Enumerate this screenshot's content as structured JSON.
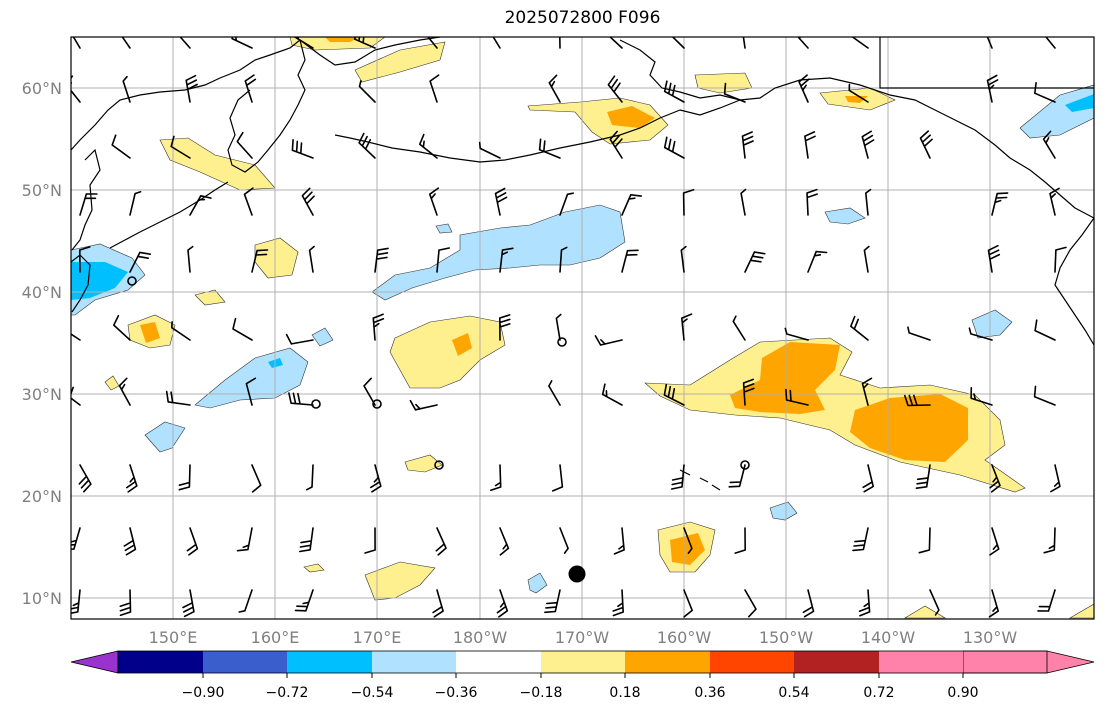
{
  "title": "2025072800 F096",
  "map": {
    "lat_labels": [
      "60°N",
      "50°N",
      "40°N",
      "30°N",
      "20°N",
      "10°N"
    ],
    "lon_labels": [
      "150°E",
      "160°E",
      "170°E",
      "180°W",
      "170°W",
      "160°W",
      "150°W",
      "140°W",
      "130°W"
    ],
    "marker": "station-dot"
  },
  "colorbar": {
    "labels": [
      "−0.90",
      "−0.72",
      "−0.54",
      "−0.36",
      "−0.18",
      "0.18",
      "0.36",
      "0.54",
      "0.72",
      "0.90"
    ],
    "colors": [
      "#9a32cd",
      "#00008b",
      "#3a5fcd",
      "#00bfff",
      "#b0e2ff",
      "#ffffff",
      "#fff08f",
      "#ffa500",
      "#ff4500",
      "#b22222",
      "#ff82ab"
    ]
  },
  "fill_colors": {
    "light_yellow": "#fff08f",
    "orange": "#ffa500",
    "light_blue": "#b0e2ff",
    "deep_sky_blue": "#00bfff"
  }
}
